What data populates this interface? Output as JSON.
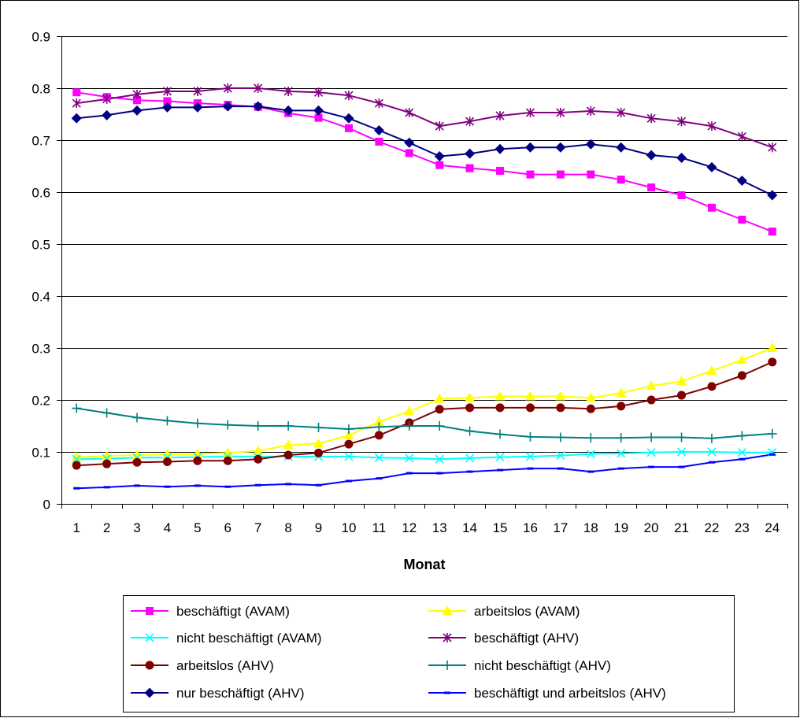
{
  "chart_data": {
    "type": "line",
    "title": "",
    "xlabel": "Monat",
    "ylabel": "",
    "ylim": [
      0,
      0.9
    ],
    "yticks": [
      "0",
      "0.1",
      "0.2",
      "0.3",
      "0.4",
      "0.5",
      "0.6",
      "0.7",
      "0.8",
      "0.9"
    ],
    "grid": "horizontal",
    "legend_placement": "bottom",
    "x": [
      1,
      2,
      3,
      4,
      5,
      6,
      7,
      8,
      9,
      10,
      11,
      12,
      13,
      14,
      15,
      16,
      17,
      18,
      19,
      20,
      21,
      22,
      23,
      24
    ],
    "x_labels": [
      "1",
      "2",
      "3",
      "4",
      "5",
      "6",
      "7",
      "8",
      "9",
      "10",
      "11",
      "12",
      "13",
      "14",
      "15",
      "16",
      "17",
      "18",
      "19",
      "20",
      "21",
      "22",
      "23",
      "24"
    ],
    "series": [
      {
        "name": "beschäftigt (AVAM)",
        "color": "#ff00ff",
        "marker": "square",
        "values": [
          0.792,
          0.783,
          0.777,
          0.775,
          0.771,
          0.768,
          0.764,
          0.752,
          0.743,
          0.723,
          0.697,
          0.675,
          0.652,
          0.646,
          0.641,
          0.634,
          0.634,
          0.634,
          0.624,
          0.609,
          0.594,
          0.57,
          0.547,
          0.524
        ]
      },
      {
        "name": "arbeitslos (AVAM)",
        "color": "#ffff00",
        "marker": "triangle",
        "values": [
          0.09,
          0.092,
          0.094,
          0.095,
          0.096,
          0.098,
          0.102,
          0.113,
          0.116,
          0.132,
          0.158,
          0.178,
          0.202,
          0.204,
          0.207,
          0.207,
          0.207,
          0.204,
          0.213,
          0.227,
          0.236,
          0.256,
          0.277,
          0.3
        ]
      },
      {
        "name": "nicht beschäftigt (AVAM)",
        "color": "#00ffff",
        "marker": "x",
        "values": [
          0.086,
          0.087,
          0.089,
          0.089,
          0.09,
          0.091,
          0.091,
          0.091,
          0.091,
          0.091,
          0.089,
          0.088,
          0.086,
          0.088,
          0.09,
          0.091,
          0.093,
          0.096,
          0.097,
          0.099,
          0.1,
          0.1,
          0.099,
          0.099
        ]
      },
      {
        "name": "beschäftigt (AHV)",
        "color": "#800080",
        "marker": "star",
        "values": [
          0.771,
          0.779,
          0.788,
          0.794,
          0.794,
          0.8,
          0.8,
          0.794,
          0.792,
          0.786,
          0.771,
          0.753,
          0.727,
          0.736,
          0.747,
          0.753,
          0.753,
          0.756,
          0.753,
          0.742,
          0.736,
          0.727,
          0.707,
          0.686
        ]
      },
      {
        "name": "arbeitslos (AHV)",
        "color": "#800000",
        "marker": "circle",
        "values": [
          0.074,
          0.077,
          0.08,
          0.081,
          0.083,
          0.083,
          0.086,
          0.094,
          0.098,
          0.115,
          0.132,
          0.156,
          0.182,
          0.185,
          0.185,
          0.185,
          0.185,
          0.183,
          0.188,
          0.2,
          0.209,
          0.226,
          0.247,
          0.273
        ]
      },
      {
        "name": "nicht beschäftigt (AHV)",
        "color": "#008080",
        "marker": "plus",
        "values": [
          0.184,
          0.175,
          0.166,
          0.16,
          0.155,
          0.152,
          0.15,
          0.15,
          0.147,
          0.144,
          0.148,
          0.15,
          0.15,
          0.14,
          0.134,
          0.129,
          0.128,
          0.127,
          0.127,
          0.128,
          0.128,
          0.126,
          0.131,
          0.135
        ]
      },
      {
        "name": "nur beschäftigt (AHV)",
        "color": "#000080",
        "marker": "diamond",
        "values": [
          0.742,
          0.748,
          0.757,
          0.763,
          0.763,
          0.765,
          0.765,
          0.757,
          0.757,
          0.742,
          0.719,
          0.695,
          0.669,
          0.674,
          0.683,
          0.686,
          0.686,
          0.692,
          0.686,
          0.671,
          0.666,
          0.648,
          0.622,
          0.594
        ]
      },
      {
        "name": "beschäftigt und arbeitslos (AHV)",
        "color": "#0000ff",
        "marker": "dash",
        "values": [
          0.03,
          0.032,
          0.035,
          0.033,
          0.035,
          0.033,
          0.036,
          0.038,
          0.036,
          0.044,
          0.049,
          0.059,
          0.059,
          0.062,
          0.065,
          0.068,
          0.068,
          0.062,
          0.068,
          0.071,
          0.071,
          0.08,
          0.086,
          0.095
        ]
      }
    ]
  }
}
